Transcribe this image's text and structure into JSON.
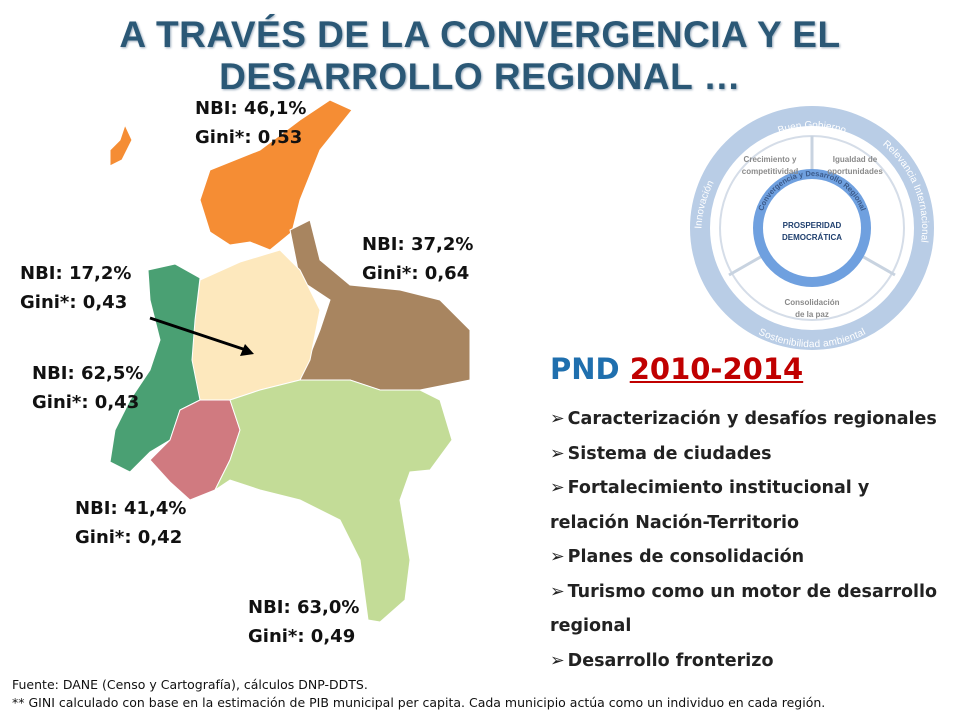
{
  "header": {
    "title": "A TRAVÉS  DE LA CONVERGENCIA Y EL DESARROLLO REGIONAL …"
  },
  "map": {
    "regions": [
      {
        "nbi": "NBI: 46,1%",
        "gini": "Gini*: 0,53"
      },
      {
        "nbi": "NBI: 37,2%",
        "gini": "Gini*: 0,64"
      },
      {
        "nbi": "NBI: 17,2%",
        "gini": "Gini*: 0,43"
      },
      {
        "nbi": "NBI: 62,5%",
        "gini": "Gini*: 0,43"
      },
      {
        "nbi": "NBI: 41,4%",
        "gini": "Gini*: 0,42"
      },
      {
        "nbi": "NBI: 63,0%",
        "gini": "Gini*: 0,49"
      }
    ]
  },
  "diagram": {
    "outer": [
      "Buen Gobierno",
      "Relevancia Internacional",
      "Sostenibilidad ambiental",
      "Innovación"
    ],
    "segments": [
      [
        "Crecimiento y",
        "competitividad"
      ],
      [
        "Igualdad de",
        "oportunidades"
      ],
      [
        "Consolidación",
        "de la paz"
      ]
    ],
    "ring": "Convergencia y Desarrollo Regional",
    "center": [
      "PROSPERIDAD",
      "DEMOCRÁTICA"
    ]
  },
  "plan": {
    "prefix": "PND",
    "years": "2010-2014",
    "items": [
      "Caracterización y desafíos regionales",
      "Sistema de ciudades",
      "Fortalecimiento institucional  y relación Nación-Territorio",
      "Planes de consolidación",
      "Turismo como un motor de desarrollo regional",
      "Desarrollo fronterizo"
    ]
  },
  "footer": {
    "source": "Fuente: DANE (Censo y Cartografía), cálculos DNP-DDTS.",
    "note": "** GINI calculado con base en la estimación de PIB municipal per capita. Cada municipio actúa como un individuo en cada región."
  }
}
